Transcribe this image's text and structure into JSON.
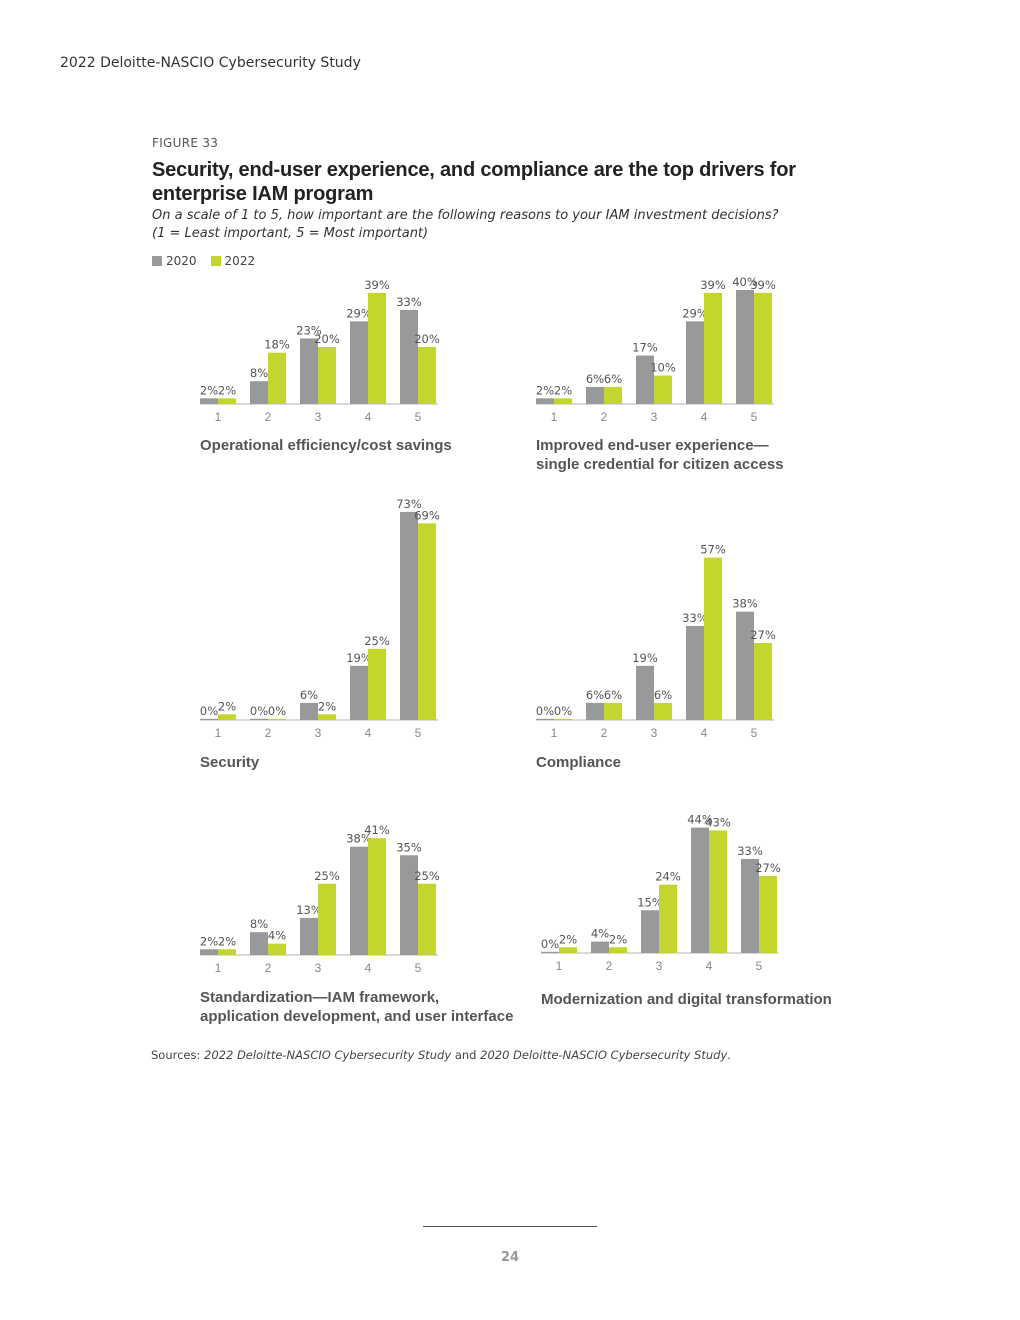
{
  "header": {
    "running_title": "2022 Deloitte-NASCIO Cybersecurity Study"
  },
  "figure": {
    "label": "FIGURE 33",
    "title": "Security, end-user experience, and compliance are the top drivers for enterprise IAM program",
    "subtitle_line1": "On a scale of 1 to 5, how important are the following reasons to your IAM investment decisions?",
    "subtitle_line2": "(1 = Least important, 5 = Most important)"
  },
  "legend": [
    {
      "name": "2020",
      "color": "#97999b"
    },
    {
      "name": "2022",
      "color": "#c4d62d"
    }
  ],
  "chart_data": [
    {
      "type": "bar",
      "title": "Operational efficiency/cost savings",
      "categories": [
        "1",
        "2",
        "3",
        "4",
        "5"
      ],
      "series": [
        {
          "name": "2020",
          "values": [
            2,
            8,
            23,
            29,
            33
          ]
        },
        {
          "name": "2022",
          "values": [
            2,
            18,
            20,
            39,
            20
          ]
        }
      ]
    },
    {
      "type": "bar",
      "title": "Improved end-user experience—\nsingle credential for citizen access",
      "categories": [
        "1",
        "2",
        "3",
        "4",
        "5"
      ],
      "series": [
        {
          "name": "2020",
          "values": [
            2,
            6,
            17,
            29,
            40
          ]
        },
        {
          "name": "2022",
          "values": [
            2,
            6,
            10,
            39,
            39
          ]
        }
      ]
    },
    {
      "type": "bar",
      "title": "Security",
      "categories": [
        "1",
        "2",
        "3",
        "4",
        "5"
      ],
      "series": [
        {
          "name": "2020",
          "values": [
            0,
            0,
            6,
            19,
            73
          ]
        },
        {
          "name": "2022",
          "values": [
            2,
            0,
            2,
            25,
            69
          ]
        }
      ]
    },
    {
      "type": "bar",
      "title": "Compliance",
      "categories": [
        "1",
        "2",
        "3",
        "4",
        "5"
      ],
      "series": [
        {
          "name": "2020",
          "values": [
            0,
            6,
            19,
            33,
            38
          ]
        },
        {
          "name": "2022",
          "values": [
            0,
            6,
            6,
            57,
            27
          ]
        }
      ]
    },
    {
      "type": "bar",
      "title": "Standardization—IAM framework,\napplication development, and user interface",
      "categories": [
        "1",
        "2",
        "3",
        "4",
        "5"
      ],
      "series": [
        {
          "name": "2020",
          "values": [
            2,
            8,
            13,
            38,
            35
          ]
        },
        {
          "name": "2022",
          "values": [
            2,
            4,
            25,
            41,
            25
          ]
        }
      ]
    },
    {
      "type": "bar",
      "title": "Modernization and digital transformation",
      "categories": [
        "1",
        "2",
        "3",
        "4",
        "5"
      ],
      "series": [
        {
          "name": "2020",
          "values": [
            0,
            4,
            15,
            44,
            33
          ]
        },
        {
          "name": "2022",
          "values": [
            2,
            2,
            24,
            43,
            27
          ]
        }
      ]
    }
  ],
  "sources": {
    "prefix": "Sources: ",
    "study1": "2022 Deloitte-NASCIO Cybersecurity Study",
    "joiner": " and ",
    "study2": "2020 Deloitte-NASCIO Cybersecurity Study",
    "suffix": "."
  },
  "footer": {
    "page_number": "24"
  }
}
